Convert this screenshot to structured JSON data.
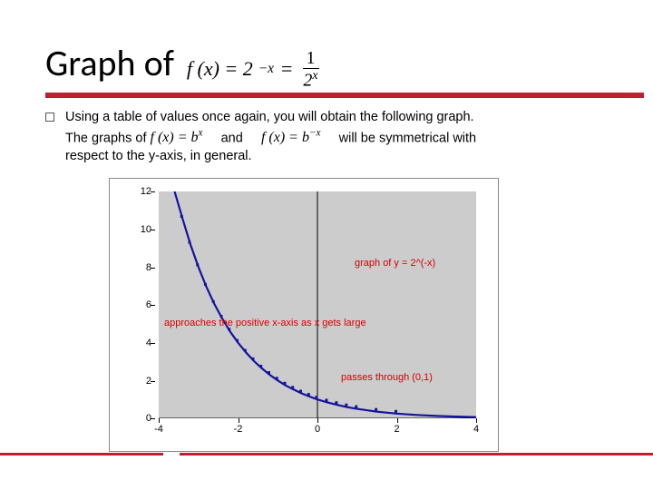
{
  "title": "Graph of",
  "title_formula": {
    "lhs": "f (x) = 2",
    "exp1": "−x",
    "eq": "=",
    "num": "1",
    "den_base": "2",
    "den_exp": "x"
  },
  "body": {
    "line1a": "Using a table of values once again, you will obtain the following graph.",
    "line2a": "The graphs of ",
    "formula1_base": "f (x) = b",
    "formula1_exp": "x",
    "line2b": " and ",
    "formula2_base": "f (x) = b",
    "formula2_exp": "−x",
    "line2c": " will be symmetrical with",
    "line3": "respect to the y-axis, in general."
  },
  "chart": {
    "xlim": [
      -4,
      4
    ],
    "ylim": [
      0,
      12
    ],
    "xticks": [
      -4,
      -2,
      0,
      2,
      4
    ],
    "yticks": [
      0,
      2,
      4,
      6,
      8,
      10,
      12
    ],
    "curve": [
      [
        -3.6,
        12.0
      ],
      [
        -3.4,
        10.56
      ],
      [
        -3.2,
        9.19
      ],
      [
        -3.0,
        8.0
      ],
      [
        -2.8,
        6.96
      ],
      [
        -2.6,
        6.06
      ],
      [
        -2.4,
        5.28
      ],
      [
        -2.2,
        4.59
      ],
      [
        -2.0,
        4.0
      ],
      [
        -1.8,
        3.48
      ],
      [
        -1.6,
        3.03
      ],
      [
        -1.4,
        2.64
      ],
      [
        -1.2,
        2.3
      ],
      [
        -1.0,
        2.0
      ],
      [
        -0.8,
        1.74
      ],
      [
        -0.6,
        1.52
      ],
      [
        -0.4,
        1.32
      ],
      [
        -0.2,
        1.15
      ],
      [
        0.0,
        1.0
      ],
      [
        0.25,
        0.84
      ],
      [
        0.5,
        0.71
      ],
      [
        0.75,
        0.59
      ],
      [
        1.0,
        0.5
      ],
      [
        1.5,
        0.35
      ],
      [
        2.0,
        0.25
      ],
      [
        2.5,
        0.18
      ],
      [
        3.0,
        0.125
      ],
      [
        3.5,
        0.09
      ],
      [
        4.0,
        0.0625
      ]
    ],
    "curve_color": "#14149c",
    "curve_width": 2.2,
    "axis_color": "#000000",
    "background_color": "#cccccc",
    "annot1": "graph of y = 2^(-x)",
    "annot2": "approaches the positive x-axis as x gets large",
    "annot3": "passes through (0,1)"
  },
  "colors": {
    "rule": "#bd2031",
    "annot": "#d40000"
  }
}
